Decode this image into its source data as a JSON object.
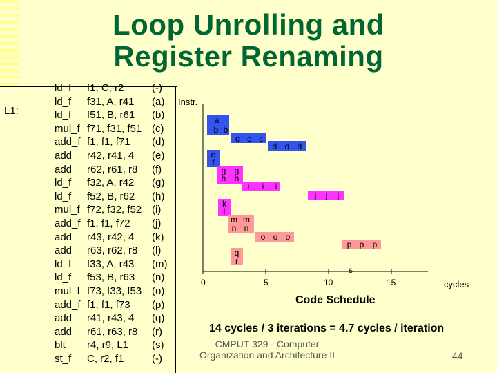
{
  "title": {
    "line1": "Loop Unrolling and",
    "line2": "Register Renaming"
  },
  "code": {
    "label": "L1:",
    "rows": [
      {
        "op": "ld_f",
        "args": "f1, C, r2",
        "tag": "(-)"
      },
      {
        "op": "ld_f",
        "args": "f31, A, r41",
        "tag": "(a)"
      },
      {
        "op": "ld_f",
        "args": "f51, B, r61",
        "tag": "(b)"
      },
      {
        "op": "mul_f",
        "args": "f71, f31, f51",
        "tag": "(c)"
      },
      {
        "op": "add_f",
        "args": "f1, f1, f71",
        "tag": "(d)"
      },
      {
        "op": "add",
        "args": "r42, r41, 4",
        "tag": "(e)"
      },
      {
        "op": "add",
        "args": "r62, r61, r8",
        "tag": "(f)"
      },
      {
        "op": "ld_f",
        "args": "f32, A, r42",
        "tag": "(g)"
      },
      {
        "op": "ld_f",
        "args": "f52, B, r62",
        "tag": "(h)"
      },
      {
        "op": "mul_f",
        "args": "f72, f32, f52",
        "tag": "(i)"
      },
      {
        "op": "add_f",
        "args": "f1, f1, f72",
        "tag": "(j)"
      },
      {
        "op": "add",
        "args": "r43, r42, 4",
        "tag": "(k)"
      },
      {
        "op": "add",
        "args": "r63, r62, r8",
        "tag": "(l)"
      },
      {
        "op": "ld_f",
        "args": "f33, A, r43",
        "tag": "(m)"
      },
      {
        "op": "ld_f",
        "args": "f53, B, r63",
        "tag": "(n)"
      },
      {
        "op": "mul_f",
        "args": "f73, f33, f53",
        "tag": "(o)"
      },
      {
        "op": "add_f",
        "args": "f1, f1, f73",
        "tag": "(p)"
      },
      {
        "op": "add",
        "args": "r41, r43, 4",
        "tag": "(q)"
      },
      {
        "op": "add",
        "args": "r61, r63, r8",
        "tag": "(r)"
      },
      {
        "op": "blt",
        "args": "r4, r9, L1",
        "tag": "(s)"
      },
      {
        "op": "st_f",
        "args": "C, r2, f1",
        "tag": "(-)"
      }
    ]
  },
  "schedule": {
    "instr_label": "Instr.",
    "cycles_label": "cycles",
    "axis_ticks": [
      "0",
      "5",
      "10",
      "15"
    ],
    "caption": "Code Schedule",
    "colors": {
      "blue": "#0033cc",
      "magenta": "#ff00ff",
      "red": "#cc0000"
    },
    "cells": [
      {
        "text": "a",
        "color": "blue"
      },
      {
        "text": "b",
        "color": "blue"
      },
      {
        "text": "b",
        "color": "blue"
      },
      {
        "text": "c",
        "color": "blue"
      },
      {
        "text": "c",
        "color": "blue"
      },
      {
        "text": "c",
        "color": "blue"
      },
      {
        "text": "d",
        "color": "blue"
      },
      {
        "text": "d",
        "color": "blue"
      },
      {
        "text": "d",
        "color": "blue"
      },
      {
        "text": "e",
        "color": "blue"
      },
      {
        "text": "f",
        "color": "blue"
      },
      {
        "text": "g",
        "color": "magenta"
      },
      {
        "text": "g",
        "color": "magenta"
      },
      {
        "text": "h",
        "color": "magenta"
      },
      {
        "text": "h",
        "color": "magenta"
      },
      {
        "text": "i",
        "color": "magenta"
      },
      {
        "text": "i",
        "color": "magenta"
      },
      {
        "text": "i",
        "color": "magenta"
      },
      {
        "text": "j",
        "color": "magenta"
      },
      {
        "text": "j",
        "color": "magenta"
      },
      {
        "text": "j",
        "color": "magenta"
      },
      {
        "text": "k",
        "color": "magenta"
      },
      {
        "text": "l",
        "color": "magenta"
      },
      {
        "text": "m",
        "color": "red"
      },
      {
        "text": "m",
        "color": "red"
      },
      {
        "text": "n",
        "color": "red"
      },
      {
        "text": "n",
        "color": "red"
      },
      {
        "text": "o",
        "color": "red"
      },
      {
        "text": "o",
        "color": "red"
      },
      {
        "text": "o",
        "color": "red"
      },
      {
        "text": "p",
        "color": "red"
      },
      {
        "text": "p",
        "color": "red"
      },
      {
        "text": "p",
        "color": "red"
      },
      {
        "text": "q",
        "color": "red"
      },
      {
        "text": "r",
        "color": "red"
      },
      {
        "text": "s",
        "color": "none"
      }
    ]
  },
  "summary": "14 cycles / 3 iterations = 4.7 cycles / iteration",
  "footer": {
    "line1": "CMPUT 329 - Computer",
    "line2": "Organization and Architecture II",
    "page": "44"
  }
}
